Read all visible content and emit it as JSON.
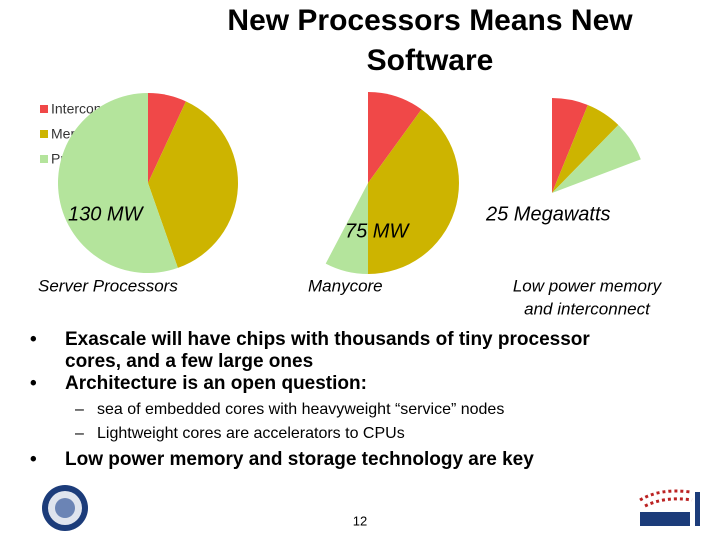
{
  "title": [
    "New Processors Means New",
    "Software"
  ],
  "legend": {
    "categories": [
      "Interconnect",
      "Memory",
      "Processors"
    ],
    "colors": [
      "#f04848",
      "#cdb400",
      "#b4e49c"
    ]
  },
  "chart_data": [
    {
      "type": "pie",
      "label": "130 MW",
      "caption": [
        "Server Processors"
      ],
      "values": [
        9,
        49,
        72
      ]
    },
    {
      "type": "pie",
      "label": "75 MW",
      "caption": [
        "Manycore"
      ],
      "values": [
        13,
        52,
        10
      ]
    },
    {
      "type": "pie",
      "label": "25 Megawatts",
      "caption": [
        "Low power memory",
        "and interconnect"
      ],
      "values": [
        8,
        8,
        9
      ]
    }
  ],
  "bullets": [
    {
      "lines": [
        "Exascale will have chips with thousands of tiny processor",
        "cores, and a few large ones"
      ]
    },
    {
      "lines": [
        "Architecture is an open question:"
      ],
      "sub": [
        "sea of embedded cores with heavyweight “service” nodes",
        "Lightweight cores are accelerators to CPUs"
      ]
    },
    {
      "lines": [
        "Low power memory and storage technology are key"
      ]
    }
  ],
  "page_number": "12"
}
